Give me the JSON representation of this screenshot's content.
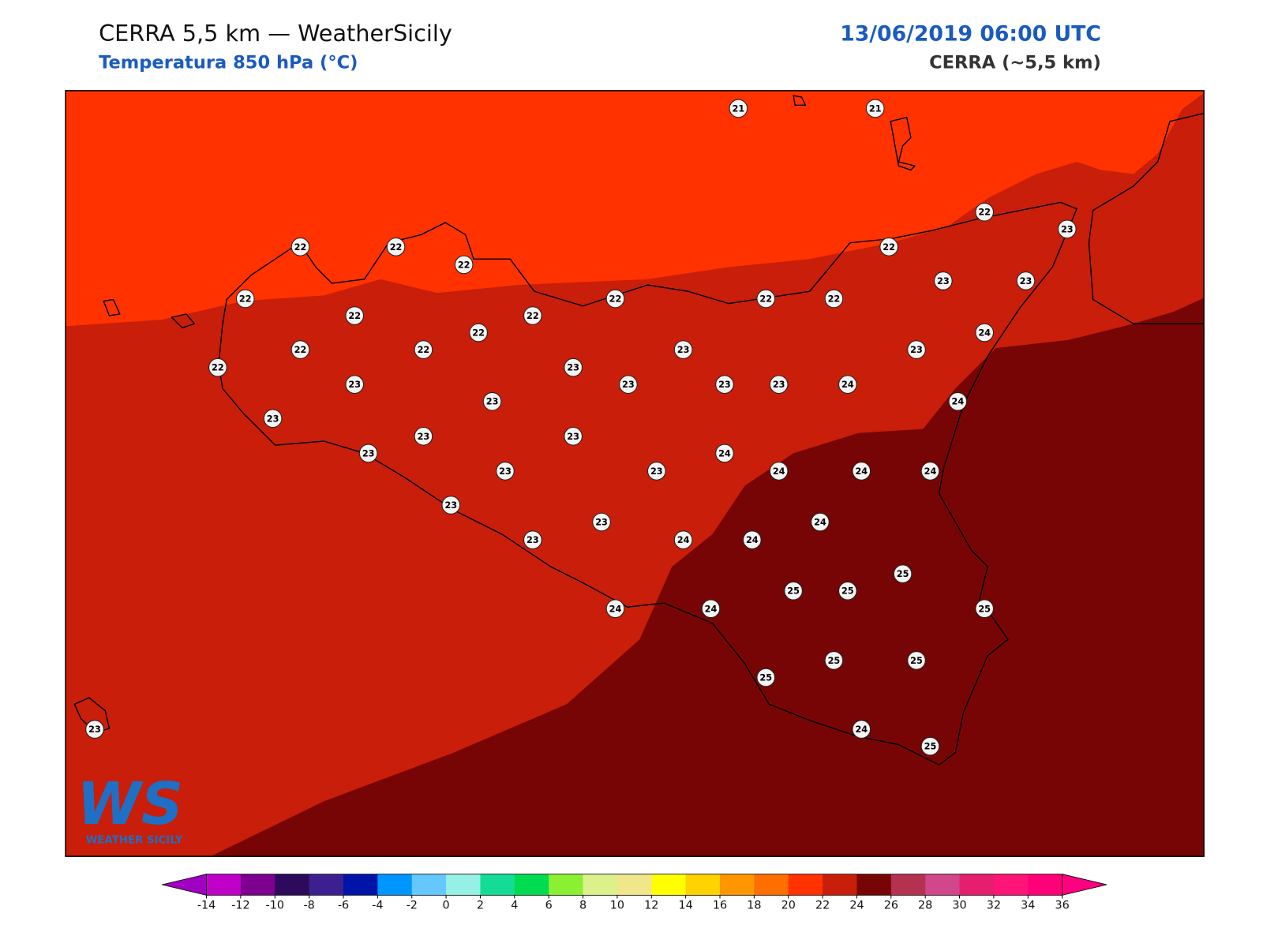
{
  "header": {
    "title": "CERRA 5,5 km — WeatherSicily",
    "subtitle": "Temperatura 850 hPa (°C)",
    "datetime": "13/06/2019 06:00 UTC",
    "model": "CERRA (~5,5 km)"
  },
  "logo": {
    "mark": "WS",
    "text": "WEATHER SICILY"
  },
  "stations": [
    21,
    21,
    22,
    23,
    22,
    22,
    22,
    22,
    22,
    22,
    22,
    22,
    23,
    23,
    22,
    22,
    22,
    24,
    22,
    22,
    23,
    23,
    22,
    23,
    23,
    23,
    23,
    23,
    24,
    23,
    24,
    23,
    23,
    23,
    23,
    24,
    23,
    23,
    24,
    24,
    24,
    23,
    24,
    23,
    23,
    24,
    24,
    25,
    25,
    25,
    24,
    24,
    25,
    25,
    25,
    25,
    23,
    24,
    25
  ],
  "colorbar": {
    "levels": [
      -14,
      -12,
      -10,
      -8,
      -6,
      -4,
      -2,
      0,
      2,
      4,
      6,
      8,
      10,
      12,
      14,
      16,
      18,
      20,
      22,
      24,
      26,
      28,
      30,
      32,
      34,
      36
    ],
    "colors": [
      "#c000c8",
      "#7d0090",
      "#2d0a5a",
      "#3c2090",
      "#0014a8",
      "#0096ff",
      "#64c8ff",
      "#96f0e6",
      "#14dc96",
      "#00dc50",
      "#8cf032",
      "#dcf08c",
      "#f0e68c",
      "#ffff00",
      "#ffd200",
      "#ff9600",
      "#ff6e00",
      "#ff3200",
      "#c81e0a",
      "#780505",
      "#b43250",
      "#d2468c",
      "#e61e6e",
      "#ff1478",
      "#ff0078"
    ],
    "under_color": "#a000c0",
    "over_color": "#ff0080"
  }
}
